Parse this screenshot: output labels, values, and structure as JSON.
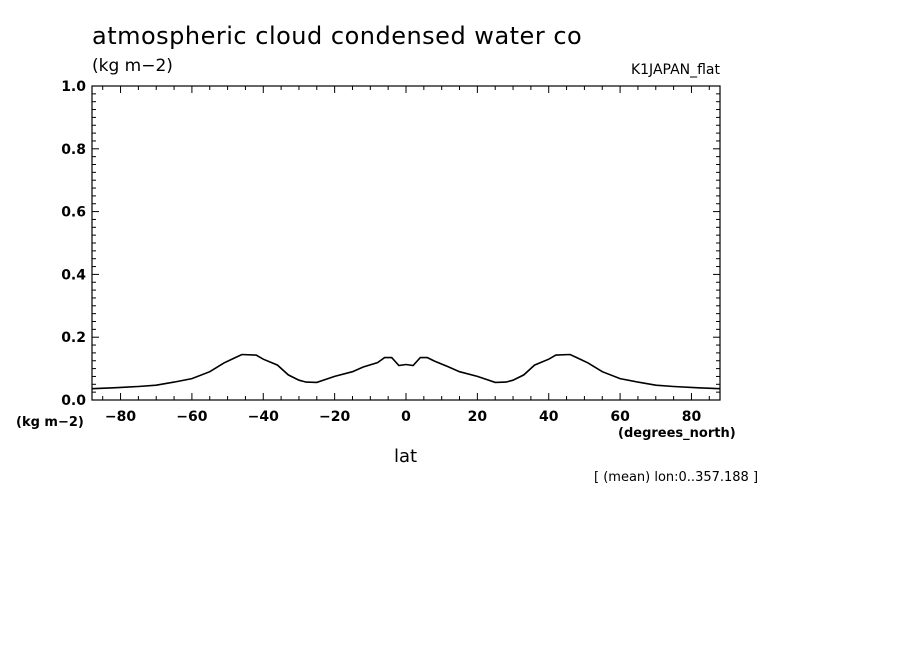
{
  "header": {
    "title": "atmospheric cloud condensed water co",
    "units": "(kg m−2)",
    "model": "K1JAPAN_flat"
  },
  "footer": {
    "y_unit": "(kg m−2)",
    "x_unit": "(degrees_north)",
    "x_label": "lat",
    "note": "[ (mean) lon:0..357.188 ]"
  },
  "chart_data": {
    "type": "line",
    "title": "atmospheric cloud condensed water co",
    "xlabel": "lat",
    "ylabel": "(kg m−2)",
    "xlim": [
      -88,
      88
    ],
    "ylim": [
      0.0,
      1.0
    ],
    "x_ticks": [
      -80,
      -60,
      -40,
      -20,
      0,
      20,
      40,
      60,
      80
    ],
    "x_tick_labels": [
      "−80",
      "−60",
      "−40",
      "−20",
      "0",
      "20",
      "40",
      "60",
      "80"
    ],
    "y_ticks": [
      0.0,
      0.2,
      0.4,
      0.6,
      0.8,
      1.0
    ],
    "y_tick_labels": [
      "0.0",
      "0.2",
      "0.4",
      "0.6",
      "0.8",
      "1.0"
    ],
    "grid": false,
    "series": [
      {
        "x": [
          -88,
          -82,
          -75,
          -70,
          -65,
          -60,
          -55,
          -51,
          -48,
          -46,
          -42,
          -40,
          -36,
          -33,
          -30,
          -28,
          -25,
          -20,
          -15,
          -12,
          -8,
          -6,
          -4,
          -2,
          0,
          2,
          4,
          6,
          8,
          12,
          15,
          20,
          25,
          28,
          30,
          33,
          36,
          40,
          42,
          46,
          48,
          51,
          55,
          60,
          65,
          70,
          75,
          82,
          88
        ],
        "y": [
          0.036,
          0.039,
          0.043,
          0.047,
          0.057,
          0.068,
          0.09,
          0.118,
          0.134,
          0.145,
          0.143,
          0.13,
          0.111,
          0.08,
          0.063,
          0.057,
          0.056,
          0.075,
          0.09,
          0.105,
          0.119,
          0.135,
          0.135,
          0.11,
          0.113,
          0.11,
          0.135,
          0.135,
          0.124,
          0.105,
          0.09,
          0.075,
          0.056,
          0.057,
          0.063,
          0.08,
          0.111,
          0.13,
          0.143,
          0.145,
          0.134,
          0.118,
          0.09,
          0.068,
          0.057,
          0.047,
          0.043,
          0.039,
          0.036
        ]
      }
    ]
  }
}
